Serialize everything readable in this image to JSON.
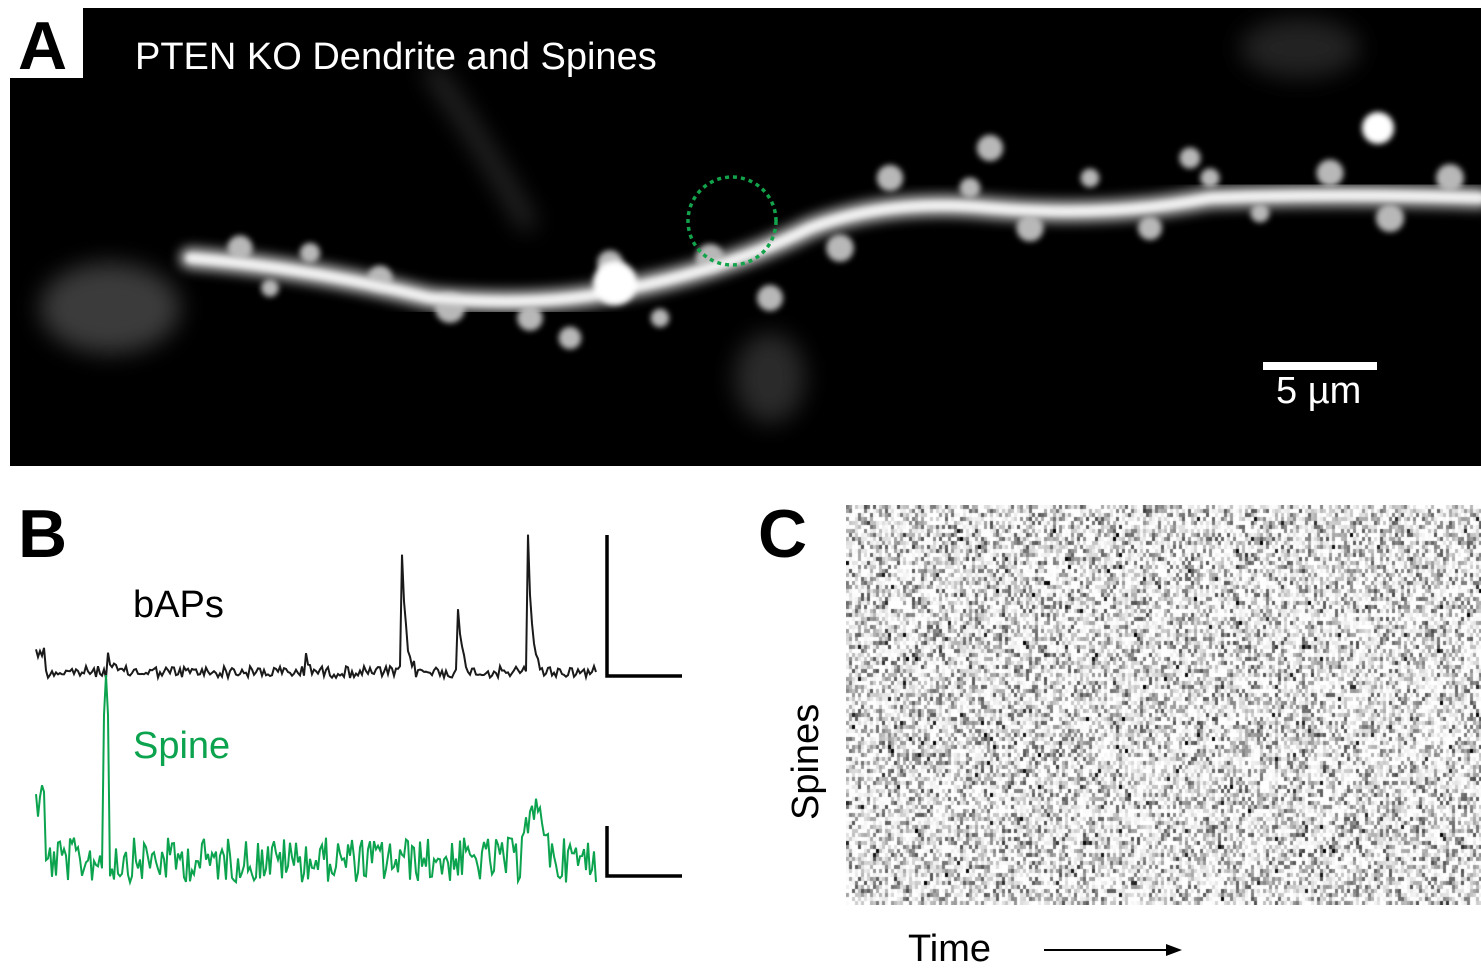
{
  "panels": {
    "a": {
      "letter": "A",
      "title": "PTEN KO Dendrite and Spines",
      "scale_bar": "5 µm",
      "roi_color": "#13a34a"
    },
    "b": {
      "letter": "B",
      "bap_label": "bAPs",
      "spine_label": "Spine",
      "bap_color": "#1a1a1a",
      "spine_color": "#0ca34e"
    },
    "c": {
      "letter": "C",
      "y_label": "Spines",
      "x_label": "Time"
    }
  }
}
